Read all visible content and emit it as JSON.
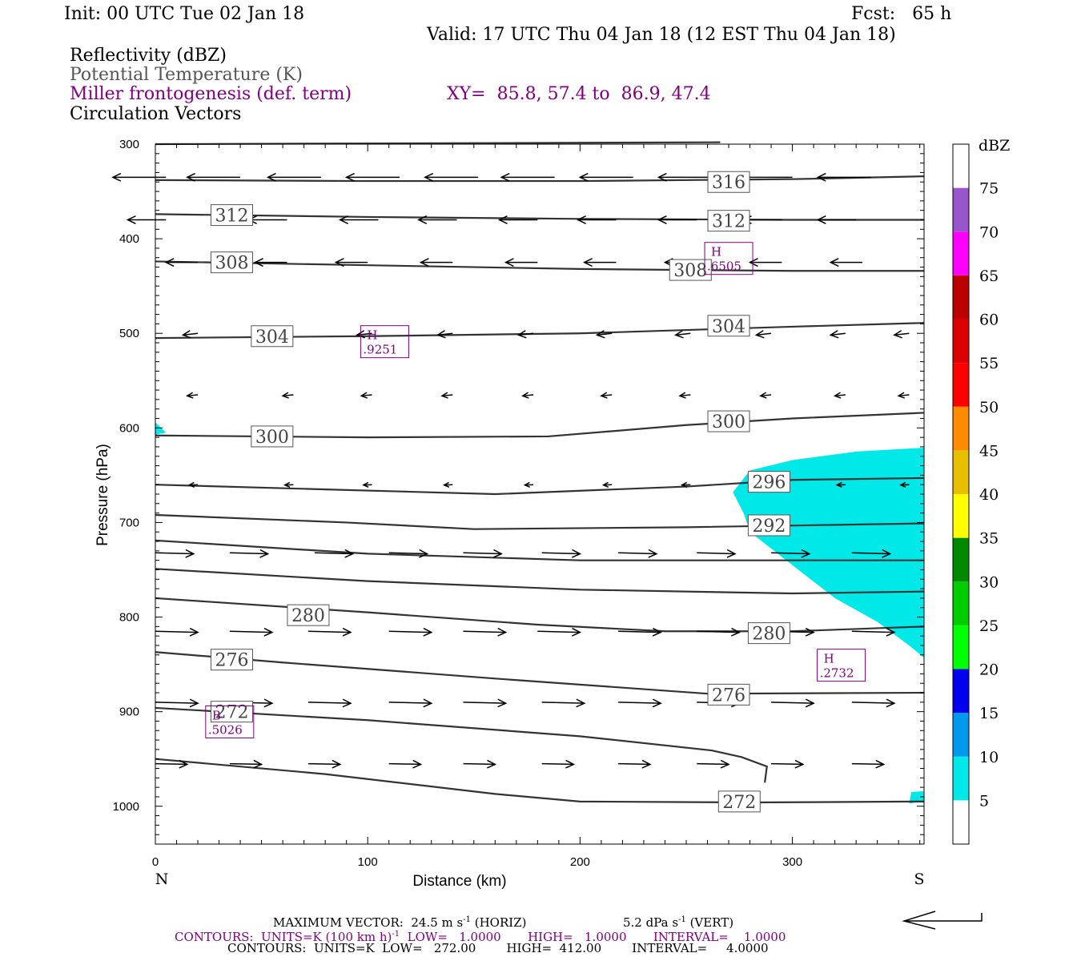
{
  "header": {
    "init": "Init: 00 UTC Tue 02 Jan 18",
    "fcst": "Fcst:   65 h",
    "valid": "Valid: 17 UTC Thu 04 Jan 18 (12 EST Thu 04 Jan 18)"
  },
  "legend_lines": {
    "reflectivity": "Reflectivity (dBZ)",
    "theta": "Potential Temperature (K)",
    "frontogenesis": "Miller frontogenesis (def. term)",
    "xy": "XY=  85.8, 57.4 to  86.9, 47.4",
    "vectors": "Circulation Vectors"
  },
  "footer": {
    "max_vector": "MAXIMUM VECTOR:  24.5 m s",
    "max_vector_horiz": " (HORIZ)",
    "vert_value": "5.2 dPa s",
    "vert_suffix": " (VERT)",
    "contours_purple_a": "CONTOURS:  UNITS=K (100 km h)",
    "contours_purple_b": "  LOW=   1.0000       HIGH=   1.0000       INTERVAL=    1.0000",
    "contours_black": "CONTOURS:  UNITS=K  LOW=   272.00        HIGH=  412.00        INTERVAL=     4.0000",
    "sup_neg1": "-1"
  },
  "colorbar": {
    "unit": "dBZ",
    "ticks": [
      "5",
      "10",
      "15",
      "20",
      "25",
      "30",
      "35",
      "40",
      "45",
      "50",
      "55",
      "60",
      "65",
      "70",
      "75"
    ],
    "colors": [
      "#ffffff",
      "#00e8e8",
      "#0099ee",
      "#0000ee",
      "#00ff00",
      "#00cc00",
      "#008800",
      "#ffff00",
      "#e8c000",
      "#ff8c00",
      "#ff0000",
      "#dd0000",
      "#bb0000",
      "#ff00ff",
      "#9955cc",
      "#ffffff"
    ]
  },
  "chart_data": {
    "type": "cross-section",
    "xlabel": "Distance (km)",
    "ylabel": "Pressure (hPa)",
    "xlim": [
      0,
      362
    ],
    "ylim": [
      1040,
      300
    ],
    "x_ticks": [
      "0",
      "100",
      "200",
      "300"
    ],
    "y_ticks": [
      "300",
      "400",
      "500",
      "600",
      "700",
      "800",
      "900",
      "1000"
    ],
    "left_endpoint": "N",
    "right_endpoint": "S",
    "theta_contours": [
      {
        "pts": [
          [
            0,
            300
          ],
          [
            136,
            299
          ],
          [
            266,
            298
          ]
        ]
      },
      {
        "pts": [
          [
            0,
            338
          ],
          [
            100,
            339
          ],
          [
            200,
            339
          ],
          [
            300,
            337
          ],
          [
            362,
            334
          ]
        ]
      },
      {
        "pts": [
          [
            0,
            374
          ],
          [
            100,
            377
          ],
          [
            200,
            379
          ],
          [
            300,
            380
          ],
          [
            362,
            380
          ]
        ]
      },
      {
        "pts": [
          [
            0,
            424
          ],
          [
            100,
            428
          ],
          [
            200,
            432
          ],
          [
            300,
            434
          ],
          [
            362,
            434
          ]
        ]
      },
      {
        "pts": [
          [
            0,
            505
          ],
          [
            100,
            503
          ],
          [
            200,
            500
          ],
          [
            300,
            493
          ],
          [
            362,
            489
          ]
        ]
      },
      {
        "pts": [
          [
            0,
            608
          ],
          [
            100,
            610
          ],
          [
            185,
            609
          ],
          [
            250,
            597
          ],
          [
            300,
            590
          ],
          [
            362,
            584
          ]
        ]
      },
      {
        "pts": [
          [
            0,
            660
          ],
          [
            80,
            665
          ],
          [
            160,
            670
          ],
          [
            250,
            662
          ],
          [
            300,
            655
          ],
          [
            362,
            653
          ]
        ]
      },
      {
        "pts": [
          [
            0,
            692
          ],
          [
            90,
            700
          ],
          [
            150,
            707
          ],
          [
            250,
            705
          ],
          [
            362,
            701
          ]
        ]
      },
      {
        "pts": [
          [
            0,
            719
          ],
          [
            100,
            733
          ],
          [
            200,
            740
          ],
          [
            300,
            740
          ],
          [
            362,
            740
          ]
        ]
      },
      {
        "pts": [
          [
            0,
            749
          ],
          [
            100,
            762
          ],
          [
            200,
            771
          ],
          [
            300,
            775
          ],
          [
            362,
            773
          ]
        ]
      },
      {
        "pts": [
          [
            0,
            780
          ],
          [
            100,
            795
          ],
          [
            180,
            808
          ],
          [
            240,
            815
          ],
          [
            300,
            815
          ],
          [
            362,
            810
          ]
        ]
      },
      {
        "pts": [
          [
            0,
            837
          ],
          [
            60,
            848
          ],
          [
            160,
            865
          ],
          [
            260,
            881
          ],
          [
            362,
            880
          ]
        ]
      },
      {
        "pts": [
          [
            0,
            896
          ],
          [
            100,
            909
          ],
          [
            200,
            926
          ],
          [
            262,
            941
          ],
          [
            276,
            948
          ],
          [
            288,
            958
          ],
          [
            287,
            975
          ]
        ]
      },
      {
        "pts": [
          [
            0,
            950
          ],
          [
            80,
            966
          ],
          [
            160,
            987
          ],
          [
            200,
            995
          ],
          [
            280,
            996
          ],
          [
            362,
            995
          ]
        ]
      }
    ],
    "theta_labels": [
      {
        "text": "316",
        "x": 270,
        "y": 340
      },
      {
        "text": "312",
        "x": 36,
        "y": 375
      },
      {
        "text": "312",
        "x": 270,
        "y": 381
      },
      {
        "text": "308",
        "x": 36,
        "y": 425
      },
      {
        "text": "308",
        "x": 252,
        "y": 433
      },
      {
        "text": "304",
        "x": 55,
        "y": 503
      },
      {
        "text": "304",
        "x": 270,
        "y": 492
      },
      {
        "text": "300",
        "x": 55,
        "y": 609
      },
      {
        "text": "300",
        "x": 270,
        "y": 593
      },
      {
        "text": "296",
        "x": 289,
        "y": 657
      },
      {
        "text": "292",
        "x": 289,
        "y": 703
      },
      {
        "text": "280",
        "x": 72,
        "y": 798
      },
      {
        "text": "280",
        "x": 289,
        "y": 817
      },
      {
        "text": "276",
        "x": 36,
        "y": 845
      },
      {
        "text": "276",
        "x": 270,
        "y": 882
      },
      {
        "text": "272",
        "x": 36,
        "y": 900
      },
      {
        "text": "272",
        "x": 275,
        "y": 995
      }
    ],
    "frontogenesis_maxima": [
      {
        "label": "H",
        "value": ".6505",
        "x": 270,
        "y": 420
      },
      {
        "label": "H",
        "value": ".9251",
        "x": 108,
        "y": 508
      },
      {
        "label": "H",
        "value": ".2732",
        "x": 323,
        "y": 850
      },
      {
        "label": "B",
        "value": ".5026",
        "x": 35,
        "y": 910
      }
    ],
    "reflectivity_area_5dBZ": [
      [
        272,
        668
      ],
      [
        280,
        645
      ],
      [
        300,
        634
      ],
      [
        330,
        625
      ],
      [
        362,
        621
      ],
      [
        362,
        843
      ],
      [
        355,
        830
      ],
      [
        340,
        805
      ],
      [
        320,
        780
      ],
      [
        300,
        745
      ],
      [
        280,
        710
      ],
      [
        277,
        690
      ]
    ],
    "reflectivity_spots": [
      [
        [
          0,
          594
        ],
        [
          5,
          605
        ],
        [
          0,
          607
        ]
      ],
      [
        [
          356,
          985
        ],
        [
          362,
          984
        ],
        [
          362,
          995
        ],
        [
          355,
          997
        ]
      ]
    ],
    "vectors": [
      {
        "y": 335,
        "x": [
          5,
          40,
          78,
          115,
          152,
          188,
          225,
          262,
          300,
          337
        ],
        "dx": -25,
        "dy": 0
      },
      {
        "y": 380,
        "x": [
          5,
          62,
          105,
          142,
          180,
          217,
          255,
          295,
          330
        ],
        "dx": -18,
        "dy": 0
      },
      {
        "y": 425,
        "x": [
          20,
          62,
          100,
          140,
          180,
          217,
          255,
          295,
          333
        ],
        "dx": -15,
        "dy": 0
      },
      {
        "y": 500,
        "x": [
          20,
          65,
          102,
          140,
          178,
          215,
          252,
          290,
          325,
          355
        ],
        "dx": -7,
        "dy": 0.8
      },
      {
        "y": 565,
        "x": [
          20,
          65,
          102,
          140,
          178,
          215,
          252,
          290,
          325,
          355
        ],
        "dx": -5,
        "dy": 0.5
      },
      {
        "y": 660,
        "x": [
          20,
          65,
          102,
          140,
          178,
          215,
          252,
          290,
          325,
          355
        ],
        "dx": -4,
        "dy": 0.2
      },
      {
        "y": 732,
        "x": [
          0,
          35,
          75,
          110,
          145,
          182,
          218,
          255,
          290,
          328
        ],
        "dx": 18,
        "dy": 0.5
      },
      {
        "y": 815,
        "x": [
          0,
          35,
          72,
          110,
          145,
          180,
          218,
          255,
          290,
          328
        ],
        "dx": 20,
        "dy": 0.5
      },
      {
        "y": 890,
        "x": [
          0,
          35,
          72,
          110,
          145,
          182,
          218,
          255,
          290,
          328
        ],
        "dx": 20,
        "dy": 0.5
      },
      {
        "y": 955,
        "x": [
          0,
          35,
          72,
          110,
          145,
          182,
          218,
          255,
          290,
          328
        ],
        "dx": 15,
        "dy": 0.3
      }
    ]
  }
}
